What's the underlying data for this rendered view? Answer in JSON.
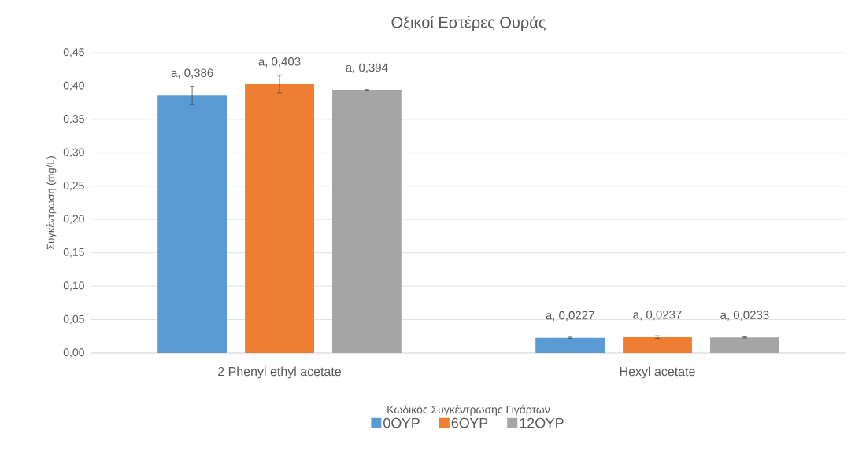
{
  "chart_data": {
    "type": "bar",
    "title": "Οξικοί Εστέρες Ουράς",
    "ylabel": "Συγκέντρωση (mg/L)",
    "legend_title": "Κωδικός Συγκέντρωσης Γιγάρτων",
    "categories": [
      "2 Phenyl ethyl acetate",
      "Hexyl acetate"
    ],
    "series": [
      {
        "name": "0ΟΥΡ",
        "color": "#5b9bd5",
        "values": [
          0.386,
          0.0227
        ],
        "errors": [
          0.013,
          0.001
        ],
        "value_labels": [
          "a, 0,386",
          "a, 0,0227"
        ]
      },
      {
        "name": "6ΟΥΡ",
        "color": "#ed7d31",
        "values": [
          0.403,
          0.0237
        ],
        "errors": [
          0.013,
          0.002
        ],
        "value_labels": [
          "a, 0,403",
          "a, 0,0237"
        ]
      },
      {
        "name": "12ΟΥΡ",
        "color": "#a5a5a5",
        "values": [
          0.394,
          0.0233
        ],
        "errors": [
          0.001,
          0.001
        ],
        "value_labels": [
          "a, 0,394",
          "a, 0,0233"
        ]
      }
    ],
    "ylim": [
      0,
      0.45
    ],
    "yticks": [
      {
        "value": 0,
        "label": "0,00"
      },
      {
        "value": 0.05,
        "label": "0,05"
      },
      {
        "value": 0.1,
        "label": "0,10"
      },
      {
        "value": 0.15,
        "label": "0,15"
      },
      {
        "value": 0.2,
        "label": "0,20"
      },
      {
        "value": 0.25,
        "label": "0,25"
      },
      {
        "value": 0.3,
        "label": "0,30"
      },
      {
        "value": 0.35,
        "label": "0,35"
      },
      {
        "value": 0.4,
        "label": "0,40"
      },
      {
        "value": 0.45,
        "label": "0,45"
      }
    ],
    "grid": "y",
    "legend": "bottom"
  }
}
